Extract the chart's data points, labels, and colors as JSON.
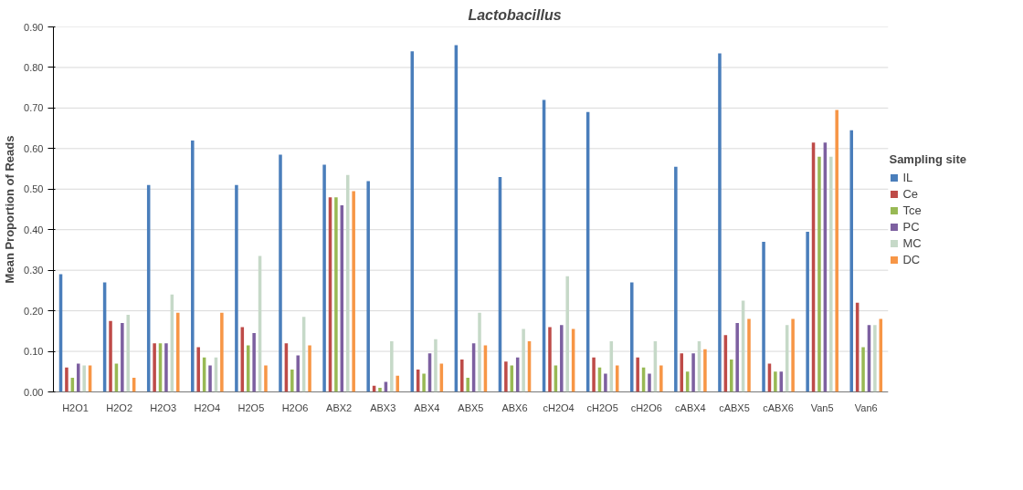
{
  "chart_data": {
    "type": "bar",
    "title": "Lactobacillus",
    "ylabel": "Mean Proportion of Reads",
    "legend_title": "Sampling site",
    "categories": [
      "H2O1",
      "H2O2",
      "H2O3",
      "H2O4",
      "H2O5",
      "H2O6",
      "ABX2",
      "ABX3",
      "ABX4",
      "ABX5",
      "ABX6",
      "cH2O4",
      "cH2O5",
      "cH2O6",
      "cABX4",
      "cABX5",
      "cABX6",
      "Van5",
      "Van6"
    ],
    "series": [
      {
        "name": "IL",
        "color": "#4a7ebb",
        "values": [
          0.29,
          0.27,
          0.51,
          0.62,
          0.51,
          0.585,
          0.56,
          0.52,
          0.84,
          0.855,
          0.53,
          0.72,
          0.69,
          0.27,
          0.555,
          0.835,
          0.37,
          0.395,
          0.645
        ]
      },
      {
        "name": "Ce",
        "color": "#be4b48",
        "values": [
          0.06,
          0.175,
          0.12,
          0.11,
          0.16,
          0.12,
          0.48,
          0.015,
          0.055,
          0.08,
          0.075,
          0.16,
          0.085,
          0.085,
          0.095,
          0.14,
          0.07,
          0.615,
          0.22
        ]
      },
      {
        "name": "Tce",
        "color": "#98b954",
        "values": [
          0.035,
          0.07,
          0.12,
          0.085,
          0.115,
          0.055,
          0.48,
          0.01,
          0.045,
          0.035,
          0.065,
          0.065,
          0.06,
          0.06,
          0.05,
          0.08,
          0.05,
          0.58,
          0.11
        ]
      },
      {
        "name": "PC",
        "color": "#7d60a0",
        "values": [
          0.07,
          0.17,
          0.12,
          0.065,
          0.145,
          0.09,
          0.46,
          0.025,
          0.095,
          0.12,
          0.085,
          0.165,
          0.045,
          0.045,
          0.095,
          0.17,
          0.05,
          0.615,
          0.165
        ]
      },
      {
        "name": "MC",
        "color": "#c6d9c8",
        "values": [
          0.065,
          0.19,
          0.24,
          0.085,
          0.335,
          0.185,
          0.535,
          0.125,
          0.13,
          0.195,
          0.155,
          0.285,
          0.125,
          0.125,
          0.125,
          0.225,
          0.165,
          0.58,
          0.165
        ]
      },
      {
        "name": "DC",
        "color": "#f79646",
        "values": [
          0.065,
          0.035,
          0.195,
          0.195,
          0.065,
          0.115,
          0.495,
          0.04,
          0.07,
          0.115,
          0.125,
          0.155,
          0.065,
          0.065,
          0.105,
          0.18,
          0.18,
          0.695,
          0.18
        ]
      }
    ],
    "ylim": [
      0,
      0.9
    ],
    "yticks": [
      {
        "value": 0,
        "label": "0.00"
      },
      {
        "value": 0.1,
        "label": "0.10"
      },
      {
        "value": 0.2,
        "label": "0.20"
      },
      {
        "value": 0.3,
        "label": "0.30"
      },
      {
        "value": 0.4,
        "label": "0.40"
      },
      {
        "value": 0.5,
        "label": "0.50"
      },
      {
        "value": 0.6,
        "label": "0.60"
      },
      {
        "value": 0.7,
        "label": "0.70"
      },
      {
        "value": 0.8,
        "label": "0.80"
      },
      {
        "value": 0.9,
        "label": "0.90"
      }
    ],
    "grid": "y",
    "legend": "right"
  }
}
